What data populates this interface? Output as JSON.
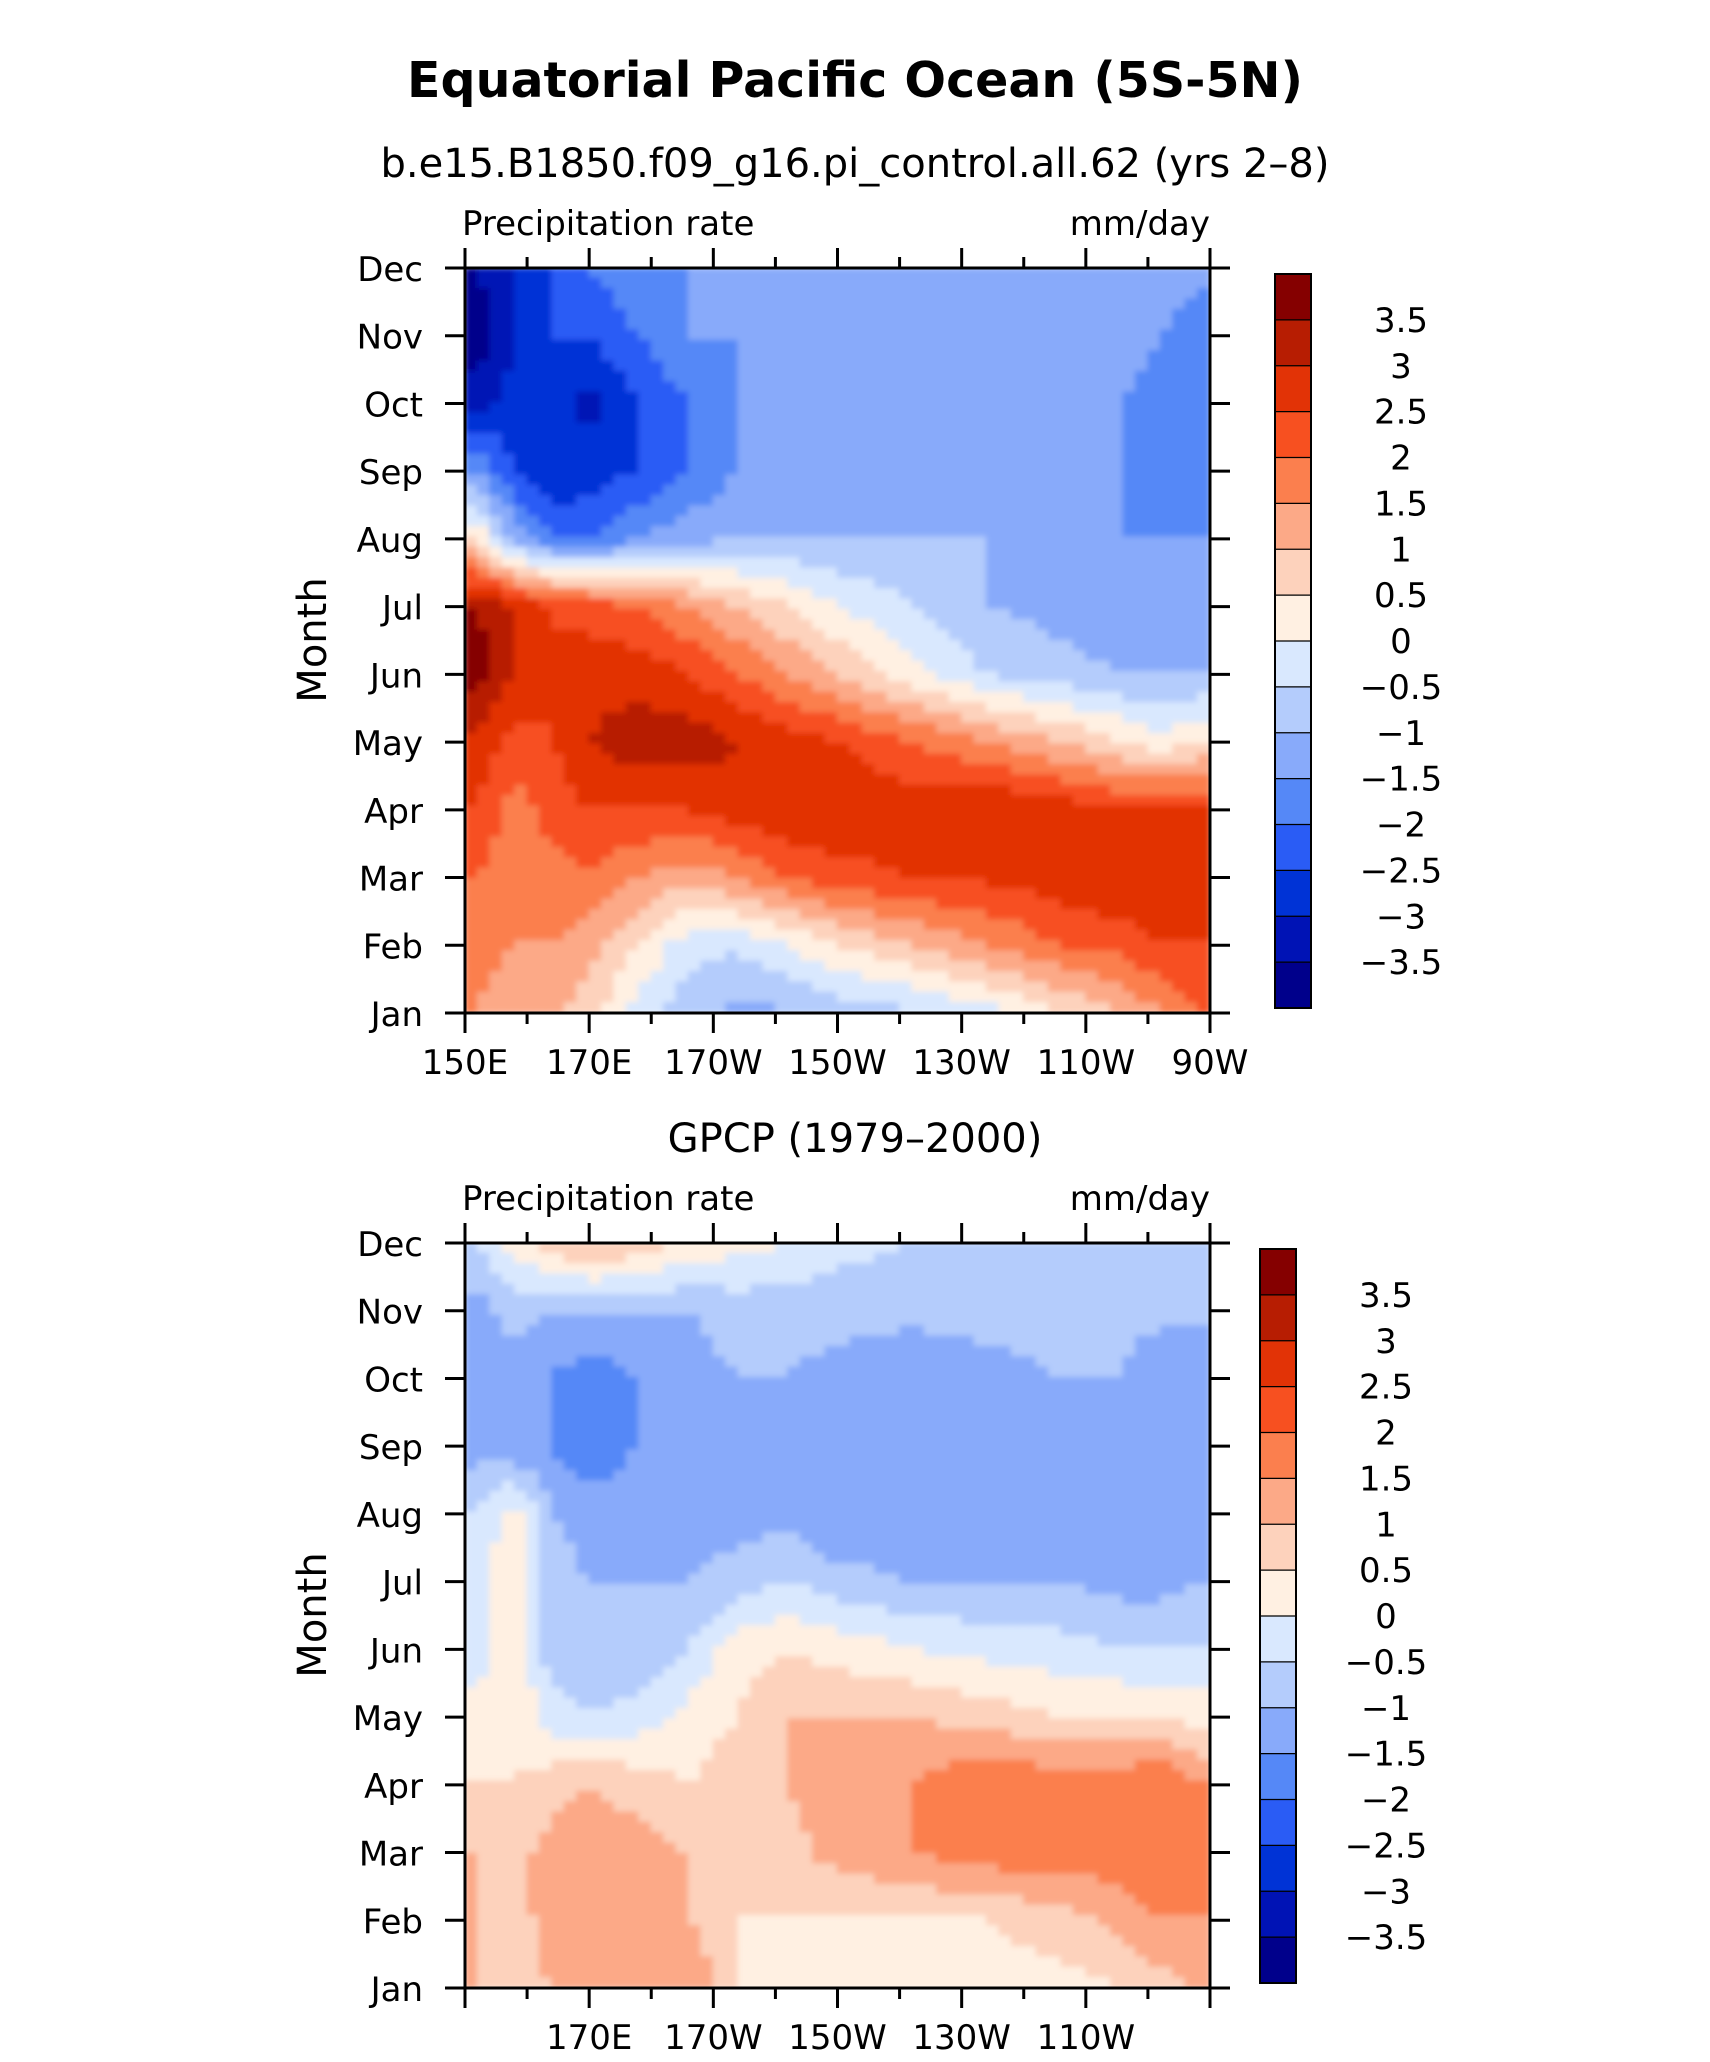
{
  "title": "Equatorial Pacific Ocean (5S-5N)",
  "chart_data": [
    {
      "type": "heatmap",
      "title": "b.e15.B1850.f09_g16.pi_control.all.62 (yrs 2–8)",
      "variable_label": "Precipitation rate",
      "units_label": "mm/day",
      "ylabel": "Month",
      "x_tick_labels": [
        "150E",
        "170E",
        "170W",
        "150W",
        "130W",
        "110W",
        "90W"
      ],
      "x_tick_lons": [
        150,
        170,
        190,
        210,
        230,
        250,
        270
      ],
      "xlim": [
        150,
        270
      ],
      "y_tick_labels": [
        "Jan",
        "Feb",
        "Mar",
        "Apr",
        "May",
        "Jun",
        "Jul",
        "Aug",
        "Sep",
        "Oct",
        "Nov",
        "Dec"
      ],
      "colorbar_labels": [
        "3.5",
        "3",
        "2.5",
        "2",
        "1.5",
        "1",
        "0.5",
        "0",
        "−0.5",
        "−1",
        "−1.5",
        "−2",
        "−2.5",
        "−3",
        "−3.5"
      ],
      "lons": [
        152,
        158,
        164,
        170,
        178,
        186,
        194,
        202,
        210,
        222,
        234,
        246,
        256,
        262,
        268
      ],
      "values": [
        [
          1.5,
          1.0,
          1.0,
          0.8,
          -0.2,
          -0.8,
          -1.2,
          -1.0,
          -0.8,
          -0.6,
          -0.2,
          0.5,
          1.0,
          1.5,
          2.0
        ],
        [
          1.8,
          1.5,
          1.5,
          1.2,
          0.5,
          -0.3,
          -0.4,
          0.0,
          0.5,
          1.0,
          1.5,
          2.0,
          2.2,
          2.5,
          2.5
        ],
        [
          2.0,
          1.5,
          1.8,
          2.0,
          1.5,
          1.2,
          1.5,
          2.0,
          2.3,
          2.5,
          2.6,
          2.8,
          3.0,
          3.0,
          3.0
        ],
        [
          2.5,
          1.8,
          2.2,
          2.5,
          2.5,
          2.5,
          2.8,
          3.0,
          3.0,
          2.8,
          3.0,
          2.8,
          2.5,
          2.5,
          2.5
        ],
        [
          2.8,
          2.3,
          2.5,
          3.0,
          3.3,
          3.3,
          3.0,
          2.8,
          2.5,
          2.0,
          1.5,
          1.0,
          0.5,
          0.2,
          0.5
        ],
        [
          3.8,
          3.0,
          2.5,
          2.8,
          2.8,
          2.5,
          2.0,
          1.5,
          1.0,
          0.2,
          -0.5,
          -0.8,
          -1.0,
          -1.0,
          -1.0
        ],
        [
          3.5,
          3.0,
          2.5,
          2.3,
          2.0,
          1.5,
          1.0,
          0.5,
          0.0,
          -0.5,
          -1.0,
          -1.2,
          -1.5,
          -1.5,
          -1.5
        ],
        [
          0.5,
          -1.2,
          -2.0,
          -2.0,
          -1.5,
          -1.2,
          -1.0,
          -1.0,
          -1.0,
          -1.0,
          -1.0,
          -1.2,
          -1.5,
          -1.5,
          -1.5
        ],
        [
          -1.5,
          -2.5,
          -3.0,
          -2.8,
          -2.5,
          -2.0,
          -1.5,
          -1.5,
          -1.5,
          -1.5,
          -1.5,
          -1.5,
          -1.5,
          -1.8,
          -2.0
        ],
        [
          -3.2,
          -2.8,
          -2.5,
          -3.2,
          -2.5,
          -2.0,
          -1.5,
          -1.5,
          -1.5,
          -1.5,
          -1.5,
          -1.5,
          -1.5,
          -1.8,
          -2.0
        ],
        [
          -3.8,
          -3.0,
          -2.5,
          -2.5,
          -2.0,
          -1.5,
          -1.5,
          -1.5,
          -1.5,
          -1.5,
          -1.2,
          -1.0,
          -1.2,
          -1.5,
          -2.0
        ],
        [
          -3.5,
          -3.0,
          -2.5,
          -2.0,
          -1.5,
          -1.5,
          -1.5,
          -1.5,
          -1.5,
          -1.2,
          -1.0,
          -1.0,
          -1.0,
          -1.0,
          -1.2
        ]
      ]
    },
    {
      "type": "heatmap",
      "title": "GPCP (1979–2000)",
      "variable_label": "Precipitation rate",
      "units_label": "mm/day",
      "ylabel": "Month",
      "x_tick_labels": [
        "170E",
        "170W",
        "150W",
        "130W",
        "110W"
      ],
      "x_tick_lons": [
        170,
        190,
        210,
        230,
        250
      ],
      "xlim": [
        150,
        270
      ],
      "y_tick_labels": [
        "Jan",
        "Feb",
        "Mar",
        "Apr",
        "May",
        "Jun",
        "Jul",
        "Aug",
        "Sep",
        "Oct",
        "Nov",
        "Dec"
      ],
      "colorbar_labels": [
        "3.5",
        "3",
        "2.5",
        "2",
        "1.5",
        "1",
        "0.5",
        "0",
        "−0.5",
        "−1",
        "−1.5",
        "−2",
        "−2.5",
        "−3",
        "−3.5"
      ],
      "lons": [
        152,
        158,
        164,
        170,
        178,
        186,
        194,
        202,
        210,
        222,
        234,
        246,
        256,
        262,
        268
      ],
      "values": [
        [
          1.0,
          0.8,
          1.0,
          1.2,
          1.5,
          1.5,
          0.5,
          0.2,
          0.2,
          0.2,
          0.2,
          0.3,
          0.5,
          0.8,
          1.0
        ],
        [
          1.0,
          0.8,
          1.2,
          1.5,
          1.2,
          1.0,
          0.5,
          0.5,
          0.5,
          0.5,
          0.5,
          0.8,
          1.2,
          1.5,
          1.5
        ],
        [
          1.0,
          0.8,
          1.2,
          1.3,
          1.2,
          1.0,
          0.5,
          0.8,
          1.2,
          1.5,
          1.8,
          1.8,
          1.8,
          2.0,
          1.5
        ],
        [
          0.5,
          0.5,
          0.8,
          1.0,
          0.8,
          0.5,
          0.8,
          1.0,
          1.3,
          1.5,
          2.0,
          1.8,
          1.8,
          2.0,
          1.5
        ],
        [
          0.2,
          0.5,
          -0.3,
          -0.5,
          -0.3,
          0.2,
          0.5,
          1.0,
          1.0,
          1.0,
          0.8,
          0.5,
          0.5,
          0.5,
          0.3
        ],
        [
          -0.3,
          0.5,
          -0.8,
          -0.8,
          -1.0,
          -0.5,
          0.3,
          0.5,
          0.3,
          0.0,
          -0.2,
          -0.3,
          -0.5,
          -0.5,
          -0.5
        ],
        [
          -0.3,
          0.5,
          -0.8,
          -1.0,
          -1.0,
          -1.0,
          -0.8,
          -0.5,
          -0.8,
          -1.0,
          -1.0,
          -1.0,
          -1.2,
          -1.2,
          -1.0
        ],
        [
          -0.5,
          0.3,
          -1.0,
          -1.2,
          -1.0,
          -1.2,
          -1.2,
          -1.2,
          -1.5,
          -1.5,
          -1.5,
          -1.2,
          -1.5,
          -1.5,
          -1.5
        ],
        [
          -1.2,
          -1.5,
          -1.5,
          -2.0,
          -1.5,
          -1.2,
          -1.2,
          -1.5,
          -1.5,
          -1.5,
          -1.5,
          -1.2,
          -1.2,
          -1.5,
          -1.5
        ],
        [
          -1.5,
          -1.2,
          -1.5,
          -1.8,
          -1.5,
          -1.2,
          -1.0,
          -1.0,
          -1.2,
          -1.5,
          -1.2,
          -1.0,
          -1.0,
          -1.5,
          -1.5
        ],
        [
          -1.2,
          -0.8,
          -1.0,
          -1.0,
          -1.0,
          -1.0,
          -0.8,
          -0.8,
          -0.8,
          -0.8,
          -0.8,
          -0.8,
          -0.8,
          -0.8,
          -0.8
        ],
        [
          -0.5,
          0.3,
          0.8,
          1.2,
          0.8,
          0.5,
          0.2,
          0.0,
          -0.3,
          -0.5,
          -0.5,
          -0.5,
          -0.5,
          -0.5,
          -0.5
        ]
      ]
    }
  ]
}
